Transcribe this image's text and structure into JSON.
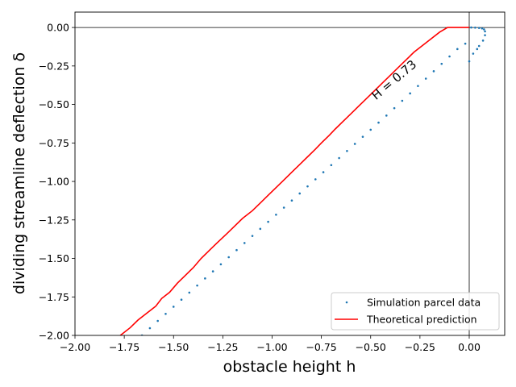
{
  "chart_data": {
    "type": "scatter",
    "title": "",
    "xlabel": "obstacle height h",
    "ylabel": "dividing streamline deflection δ",
    "xlim": [
      -2.0,
      0.18
    ],
    "ylim": [
      -2.0,
      0.1
    ],
    "xticks": [
      -2.0,
      -1.75,
      -1.5,
      -1.25,
      -1.0,
      -0.75,
      -0.5,
      -0.25,
      0.0
    ],
    "xtick_labels": [
      "−2.00",
      "−1.75",
      "−1.50",
      "−1.25",
      "−1.00",
      "−0.75",
      "−0.50",
      "−0.25",
      "0.00"
    ],
    "yticks": [
      0.0,
      -0.25,
      -0.5,
      -0.75,
      -1.0,
      -1.25,
      -1.5,
      -1.75,
      -2.0
    ],
    "ytick_labels": [
      "0.00",
      "−0.25",
      "−0.50",
      "−0.75",
      "−1.00",
      "−1.25",
      "−1.50",
      "−1.75",
      "−2.00"
    ],
    "grid": false,
    "reference_lines": {
      "x": 0.0,
      "y": 0.0
    },
    "legend_position": "lower-right",
    "annotation": "H = 0.73",
    "series": [
      {
        "name": "Simulation parcel data",
        "kind": "scatter",
        "color": "#1f77b4",
        "x": [
          -1.66,
          -1.62,
          -1.58,
          -1.54,
          -1.5,
          -1.46,
          -1.42,
          -1.38,
          -1.34,
          -1.3,
          -1.26,
          -1.22,
          -1.18,
          -1.14,
          -1.1,
          -1.06,
          -1.02,
          -0.98,
          -0.94,
          -0.9,
          -0.86,
          -0.82,
          -0.78,
          -0.74,
          -0.7,
          -0.66,
          -0.62,
          -0.58,
          -0.54,
          -0.5,
          -0.46,
          -0.42,
          -0.38,
          -0.34,
          -0.3,
          -0.26,
          -0.22,
          -0.18,
          -0.14,
          -0.1,
          -0.06,
          -0.02,
          0.0,
          0.02,
          0.04,
          0.05,
          0.07,
          0.08,
          0.08,
          0.075,
          0.065,
          0.05,
          0.03,
          0.01
        ],
        "y": [
          -2.0,
          -1.953,
          -1.906,
          -1.86,
          -1.814,
          -1.768,
          -1.722,
          -1.676,
          -1.63,
          -1.584,
          -1.538,
          -1.492,
          -1.446,
          -1.4,
          -1.354,
          -1.308,
          -1.262,
          -1.216,
          -1.17,
          -1.124,
          -1.078,
          -1.032,
          -0.986,
          -0.94,
          -0.894,
          -0.848,
          -0.802,
          -0.756,
          -0.71,
          -0.664,
          -0.618,
          -0.572,
          -0.524,
          -0.476,
          -0.428,
          -0.38,
          -0.332,
          -0.284,
          -0.236,
          -0.188,
          -0.14,
          -0.105,
          -0.22,
          -0.17,
          -0.14,
          -0.12,
          -0.085,
          -0.05,
          -0.025,
          -0.012,
          -0.006,
          -0.003,
          -0.001,
          0.0
        ]
      },
      {
        "name": "Theoretical prediction",
        "kind": "line",
        "color": "#ff0000",
        "x": [
          -1.77,
          -1.72,
          -1.68,
          -1.64,
          -1.59,
          -1.56,
          -1.52,
          -1.48,
          -1.44,
          -1.4,
          -1.36,
          -1.32,
          -1.28,
          -1.23,
          -1.19,
          -1.15,
          -1.1,
          -1.06,
          -1.02,
          -0.98,
          -0.94,
          -0.9,
          -0.86,
          -0.82,
          -0.78,
          -0.75,
          -0.71,
          -0.68,
          -0.64,
          -0.6,
          -0.56,
          -0.52,
          -0.48,
          -0.44,
          -0.4,
          -0.36,
          -0.32,
          -0.28,
          -0.24,
          -0.2,
          -0.15,
          -0.11,
          -0.07,
          -0.03,
          0.0
        ],
        "y": [
          -2.0,
          -1.95,
          -1.9,
          -1.86,
          -1.81,
          -1.76,
          -1.72,
          -1.66,
          -1.61,
          -1.56,
          -1.5,
          -1.45,
          -1.4,
          -1.34,
          -1.29,
          -1.24,
          -1.19,
          -1.14,
          -1.09,
          -1.04,
          -0.99,
          -0.94,
          -0.89,
          -0.84,
          -0.79,
          -0.75,
          -0.7,
          -0.66,
          -0.61,
          -0.56,
          -0.51,
          -0.46,
          -0.41,
          -0.36,
          -0.31,
          -0.26,
          -0.21,
          -0.16,
          -0.12,
          -0.08,
          -0.03,
          0.0,
          0.0,
          0.0,
          0.0
        ]
      }
    ]
  }
}
